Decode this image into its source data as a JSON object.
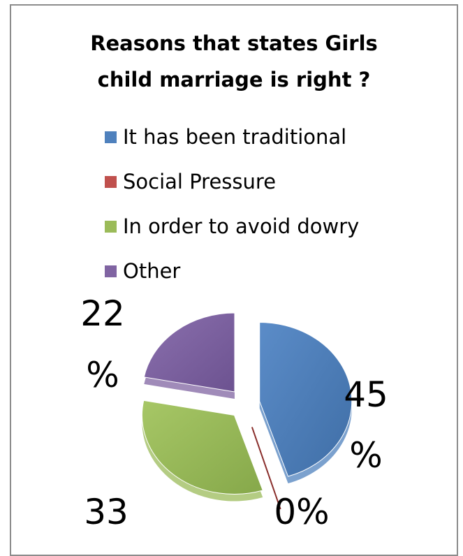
{
  "chart_data": {
    "type": "pie",
    "title_line1": "Reasons that states Girls",
    "title_line2": "child marriage is right ?",
    "legend": [
      {
        "label": "It has been traditional",
        "color": "#4F81BD"
      },
      {
        "label": "Social Pressure",
        "color": "#C0504D"
      },
      {
        "label": "In order to avoid dowry",
        "color": "#9BBB59"
      },
      {
        "label": "Other",
        "color": "#8064A2"
      }
    ],
    "slices": [
      {
        "name": "It has been traditional",
        "value": 45,
        "label_top": "45",
        "label_bottom": "%",
        "color": "#4F81BD"
      },
      {
        "name": "Social Pressure",
        "value": 0,
        "label_top": "0%",
        "label_bottom": "",
        "color": "#C0504D"
      },
      {
        "name": "In order to avoid dowry",
        "value": 33,
        "label_top": "33",
        "label_bottom": "",
        "color": "#9BBB59"
      },
      {
        "name": "Other",
        "value": 22,
        "label_top": "22",
        "label_bottom": "%",
        "color": "#8064A2"
      }
    ]
  }
}
